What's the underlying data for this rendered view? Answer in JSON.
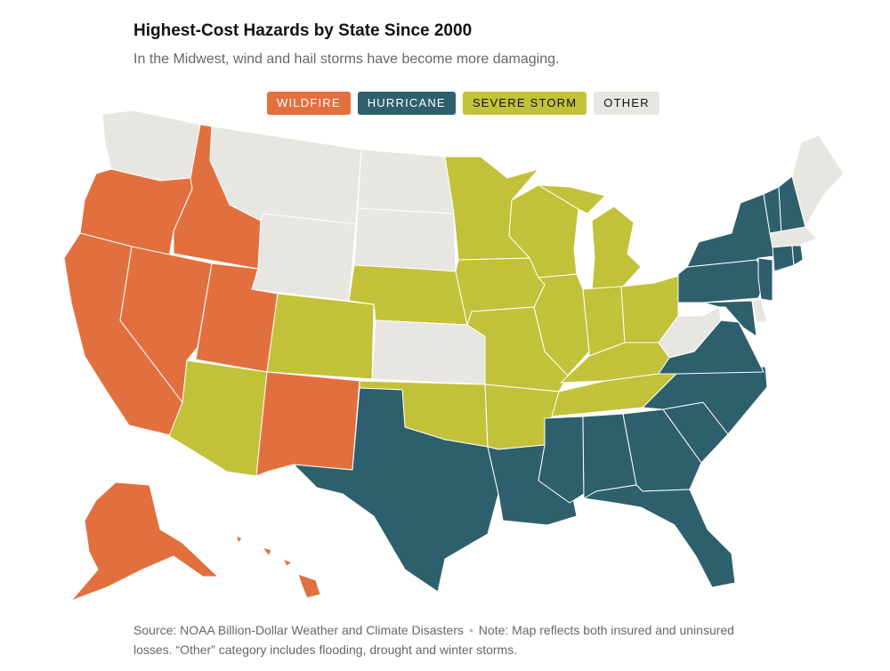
{
  "title": "Highest-Cost Hazards by State Since 2000",
  "subtitle": "In the Midwest, wind and hail storms have become more damaging.",
  "legend": [
    {
      "key": "wildfire",
      "label": "WILDFIRE",
      "color": "#e2703f"
    },
    {
      "key": "hurricane",
      "label": "HURRICANE",
      "color": "#2e5f6c"
    },
    {
      "key": "storm",
      "label": "SEVERE STORM",
      "color": "#c2c23a"
    },
    {
      "key": "other",
      "label": "OTHER",
      "color": "#e8e6e0"
    }
  ],
  "colors": {
    "wildfire": "#e2703f",
    "hurricane": "#2e5f6c",
    "storm": "#c2c23a",
    "other": "#e8e6e0"
  },
  "states": {
    "WA": "other",
    "OR": "wildfire",
    "CA": "wildfire",
    "ID": "wildfire",
    "NV": "wildfire",
    "MT": "other",
    "WY": "other",
    "UT": "wildfire",
    "AZ": "storm",
    "CO": "storm",
    "NM": "wildfire",
    "ND": "other",
    "SD": "other",
    "NE": "storm",
    "KS": "other",
    "OK": "storm",
    "TX": "hurricane",
    "MN": "storm",
    "IA": "storm",
    "MO": "storm",
    "AR": "storm",
    "LA": "hurricane",
    "WI": "storm",
    "IL": "storm",
    "MI": "storm",
    "IN": "storm",
    "OH": "storm",
    "KY": "storm",
    "TN": "storm",
    "MS": "hurricane",
    "AL": "hurricane",
    "GA": "hurricane",
    "FL": "hurricane",
    "SC": "hurricane",
    "NC": "hurricane",
    "VA": "hurricane",
    "WV": "other",
    "MD": "hurricane",
    "DE": "other",
    "PA": "hurricane",
    "NJ": "hurricane",
    "NY": "hurricane",
    "CT": "hurricane",
    "RI": "hurricane",
    "MA": "other",
    "VT": "hurricane",
    "NH": "hurricane",
    "ME": "other",
    "AK": "wildfire",
    "HI": "wildfire"
  },
  "footer": {
    "source": "Source: NOAA Billion-Dollar Weather and Climate Disasters",
    "note": "Note: Map reflects both insured and uninsured losses. “Other” category includes flooding, drought and winter storms."
  }
}
